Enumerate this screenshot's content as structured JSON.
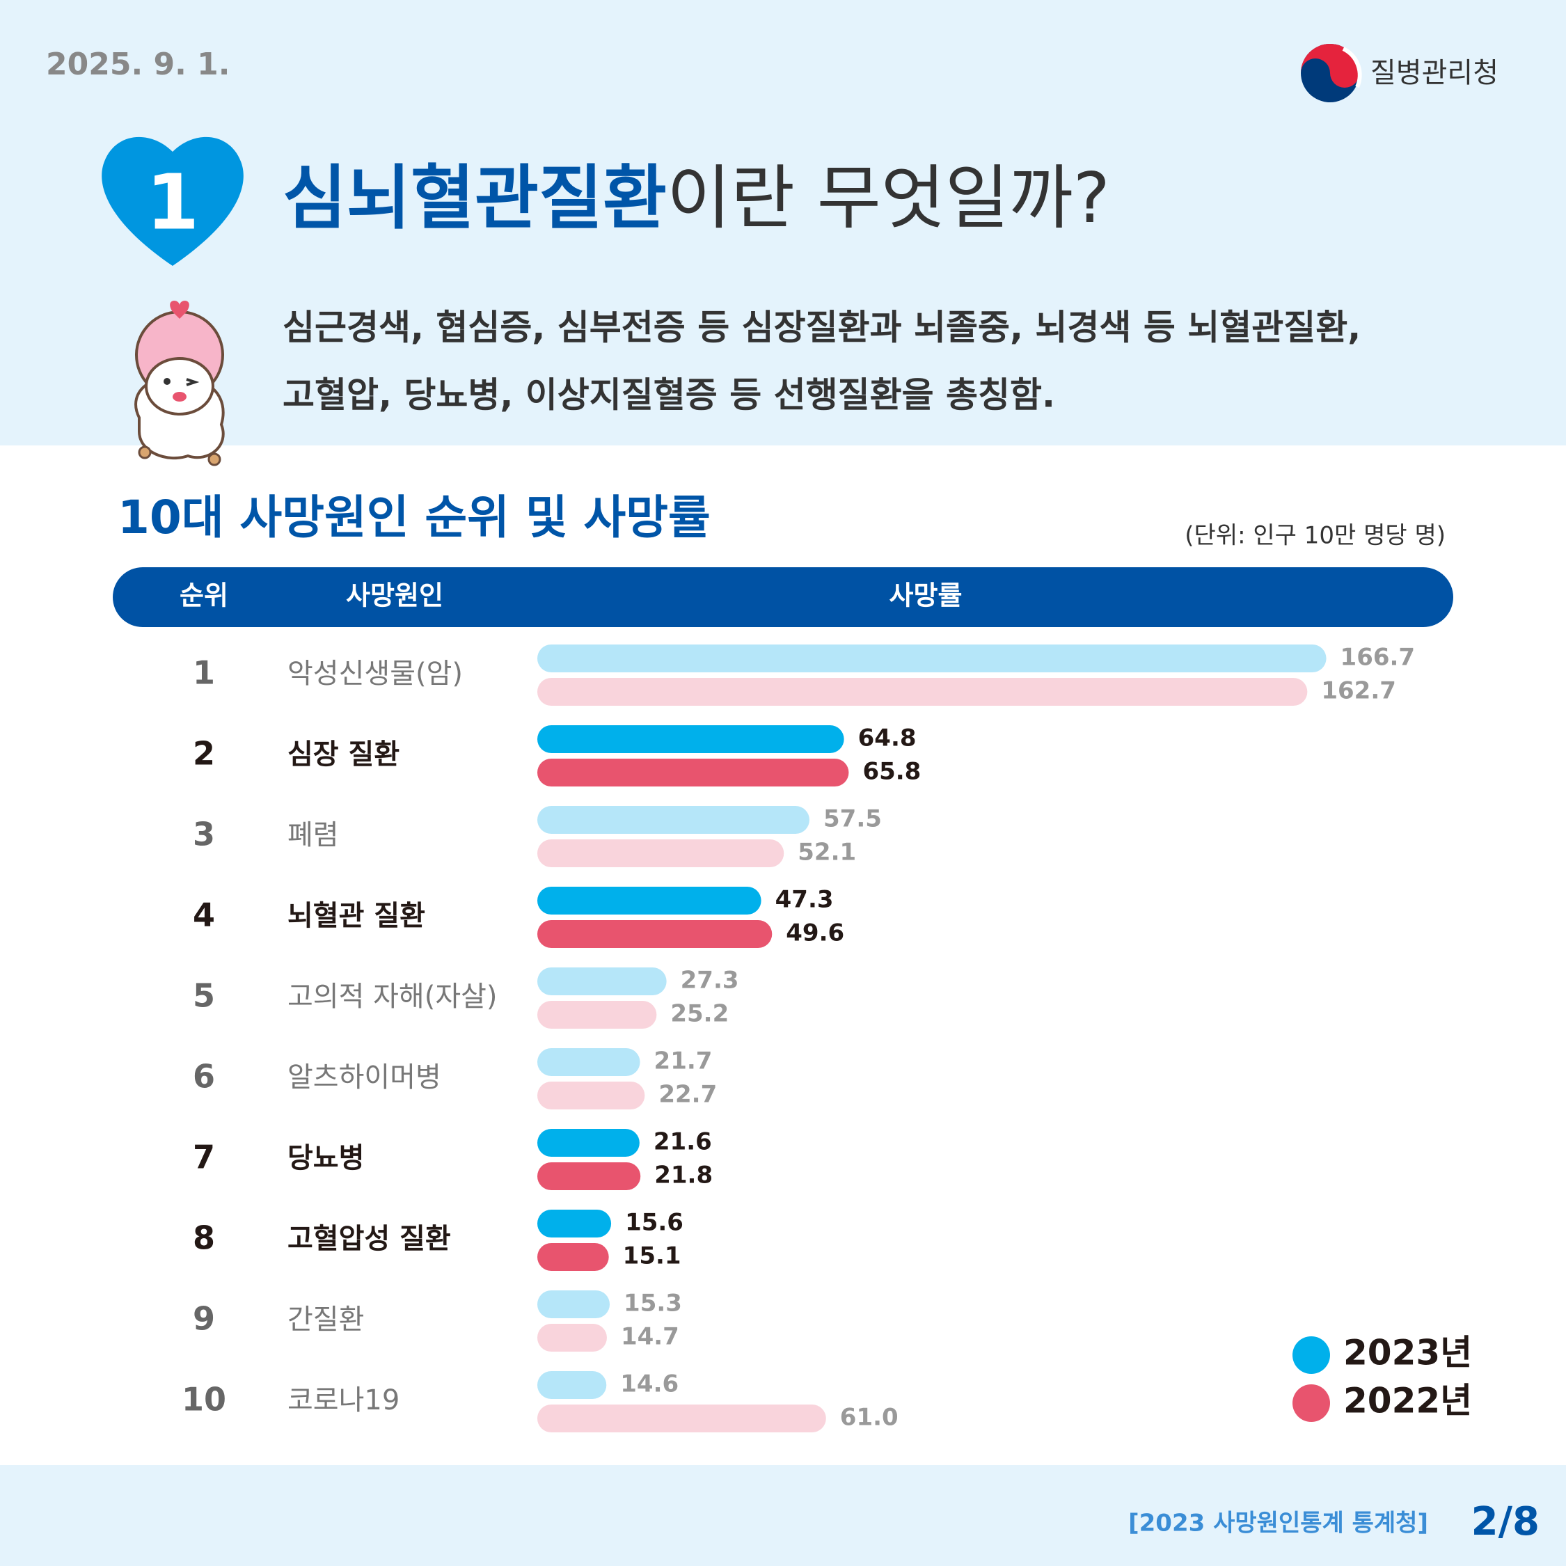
{
  "header": {
    "date": "2025. 9. 1.",
    "org": "질병관리청",
    "badge": "1",
    "title_highlight": "심뇌혈관질환",
    "title_rest": "이란 무엇일까?",
    "description": [
      "심근경색, 협심증, 심부전증 등 심장질환과 뇌졸중, 뇌경색 등 뇌혈관질환,",
      "고혈압, 당뇨병, 이상지질혈증 등 선행질환을 총칭함."
    ]
  },
  "chart_data": {
    "type": "bar",
    "orientation": "horizontal",
    "title": "10대 사망원인 순위 및 사망률",
    "unit": "(단위: 인구 10만 명당 명)",
    "columns": [
      "순위",
      "사망원인",
      "사망률"
    ],
    "ranks": [
      "1",
      "2",
      "3",
      "4",
      "5",
      "6",
      "7",
      "8",
      "9",
      "10"
    ],
    "categories": [
      "악성신생물(암)",
      "심장 질환",
      "폐렴",
      "뇌혈관 질환",
      "고의적 자해(자살)",
      "알츠하이머병",
      "당뇨병",
      "고혈압성 질환",
      "간질환",
      "코로나19"
    ],
    "highlight": [
      false,
      true,
      false,
      true,
      false,
      false,
      true,
      true,
      false,
      false
    ],
    "series": [
      {
        "name": "2023년",
        "color": "#00b0eb",
        "light_color": "#b5e6f9",
        "values": [
          166.7,
          64.8,
          57.5,
          47.3,
          27.3,
          21.7,
          21.6,
          15.6,
          15.3,
          14.6
        ]
      },
      {
        "name": "2022년",
        "color": "#e8546e",
        "light_color": "#f9d4dc",
        "values": [
          162.7,
          65.8,
          52.1,
          49.6,
          25.2,
          22.7,
          21.8,
          15.1,
          14.7,
          61.0
        ],
        "value_labels": [
          "162.7",
          "65.8",
          "52.1",
          "49.6",
          "25.2",
          "22.7",
          "21.8",
          "15.1",
          "14.7",
          "61.0"
        ]
      }
    ]
  },
  "footer": {
    "source": "[2023 사망원인통계 통계청]",
    "page": "2/8"
  }
}
